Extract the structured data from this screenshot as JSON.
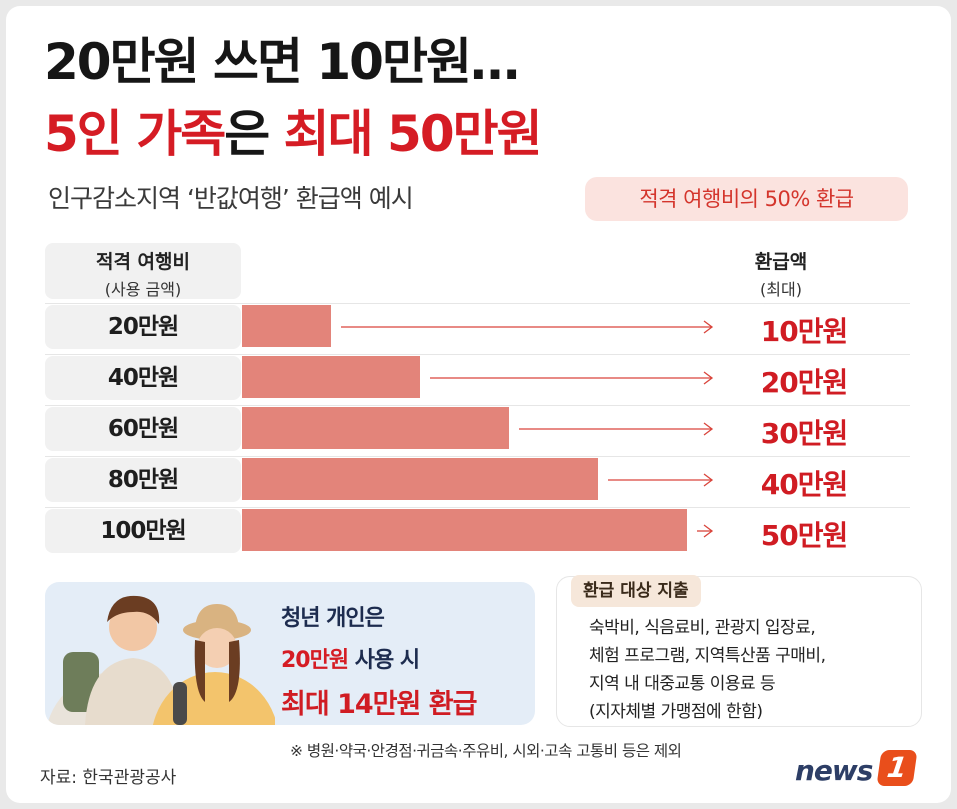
{
  "title": {
    "line1": "20만원 쓰면 10만원…",
    "line2_red1": "5인 가족",
    "line2_mid": "은 ",
    "line2_red2": "최대 50만원"
  },
  "subtitle": "인구감소지역 ‘반값여행’ 환급액 예시",
  "badge": "적격 여행비의 50% 환급",
  "colors": {
    "bar": "#e3847a",
    "arrow": "#d9453c",
    "accent": "#d01c23"
  },
  "headers": {
    "left_l1": "적격 여행비",
    "left_l2": "(사용 금액)",
    "right_l1": "환급액",
    "right_l2": "(최대)"
  },
  "chart_data": {
    "type": "bar",
    "orientation": "horizontal",
    "categories": [
      "20만원",
      "40만원",
      "60만원",
      "80만원",
      "100만원"
    ],
    "values": [
      20,
      40,
      60,
      80,
      100
    ],
    "refund_values": [
      10,
      20,
      30,
      40,
      50
    ],
    "refund_labels": [
      "10만원",
      "20만원",
      "30만원",
      "40만원",
      "50만원"
    ],
    "unit": "만원",
    "xlim": [
      0,
      100
    ]
  },
  "youth": {
    "line1": "청년 개인은",
    "line2_amount": "20만원",
    "line2_rest": " 사용 시",
    "line3": "최대 14만원 환급"
  },
  "expenses": {
    "tag": "환급 대상 지출",
    "lines": [
      "숙박비, 식음료비, 관광지 입장료,",
      "체험 프로그램, 지역특산품 구매비,",
      "지역 내 대중교통 이용료 등",
      "(지자체별 가맹점에 한함)"
    ]
  },
  "note": "※ 병원·약국·안경점·귀금속·주유비, 시외·고속 고통비 등은 제외",
  "source": "자료: 한국관광공사",
  "logo": {
    "text": "news",
    "badge": "1"
  }
}
